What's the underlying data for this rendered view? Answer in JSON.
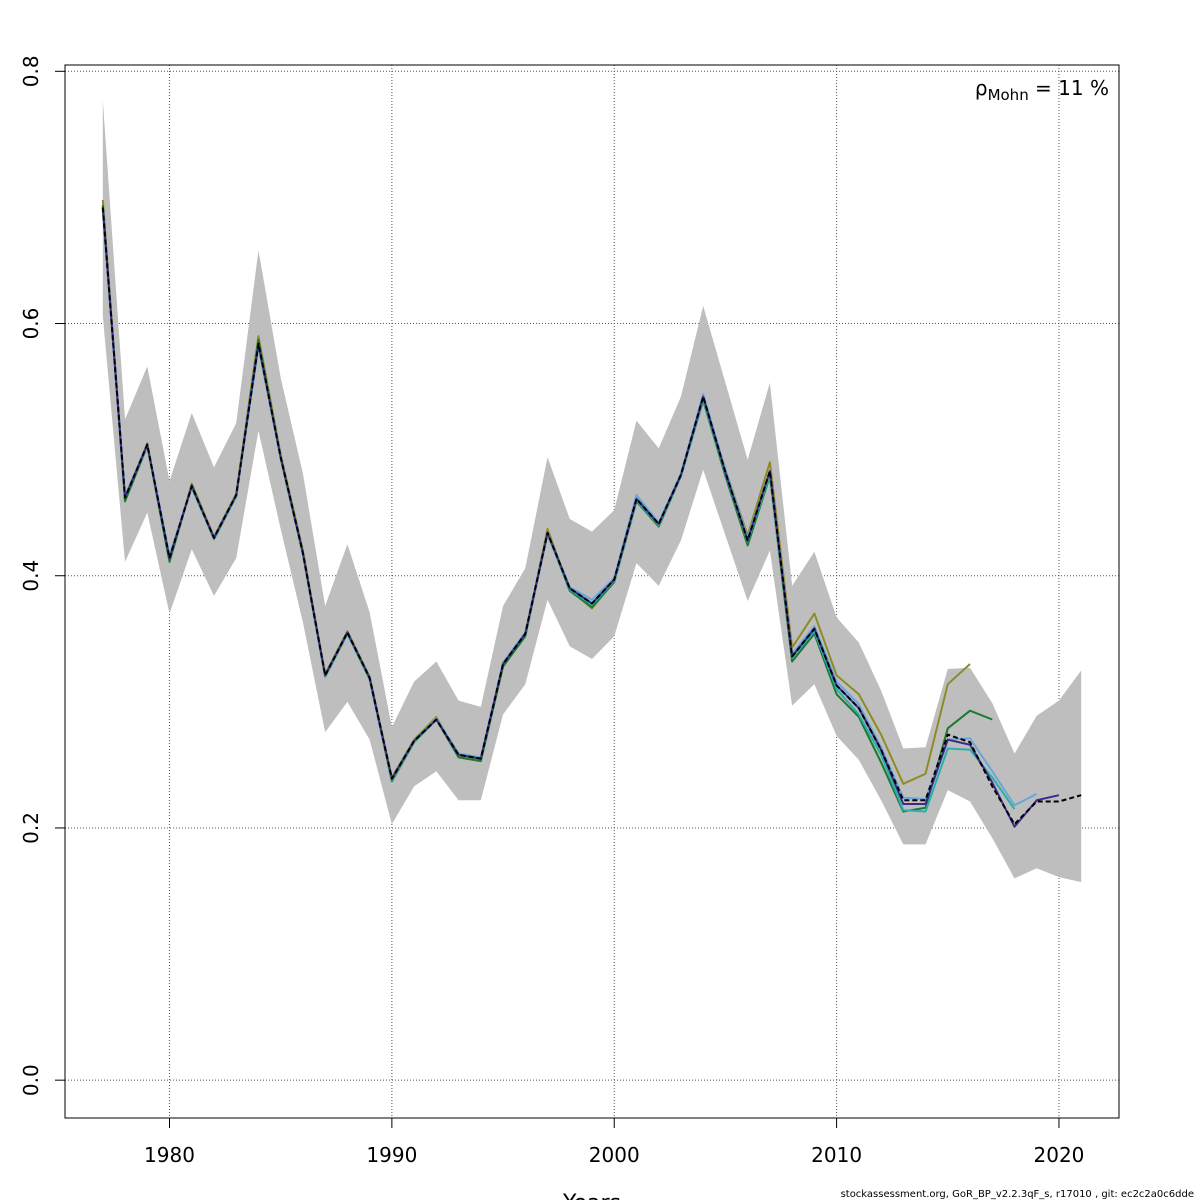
{
  "chart_data": {
    "type": "line",
    "xlabel": "Years",
    "ylabel": "",
    "xlim": [
      1975.3,
      2022.7
    ],
    "ylim": [
      -0.03,
      0.805
    ],
    "x_ticks": [
      1980,
      1990,
      2000,
      2010,
      2020
    ],
    "y_ticks": [
      0.0,
      0.2,
      0.4,
      0.6,
      0.8
    ],
    "x_tick_labels": [
      "1980",
      "1990",
      "2000",
      "2010",
      "2020"
    ],
    "y_tick_labels": [
      "0.0",
      "0.2",
      "0.4",
      "0.6",
      "0.8"
    ],
    "grid": true,
    "annotation": {
      "base": "ρ",
      "sub": "Mohn",
      "rest": " = 11 %"
    },
    "ci_band": {
      "color": "#bebebe",
      "x": [
        1977,
        1978,
        1979,
        1980,
        1981,
        1982,
        1983,
        1984,
        1985,
        1986,
        1987,
        1988,
        1989,
        1990,
        1991,
        1992,
        1993,
        1994,
        1995,
        1996,
        1997,
        1998,
        1999,
        2000,
        2001,
        2002,
        2003,
        2004,
        2005,
        2006,
        2007,
        2008,
        2009,
        2010,
        2011,
        2012,
        2013,
        2014,
        2015,
        2016,
        2017,
        2018,
        2019,
        2020,
        2021
      ],
      "upper": [
        0.777,
        0.524,
        0.566,
        0.475,
        0.529,
        0.486,
        0.521,
        0.658,
        0.557,
        0.481,
        0.376,
        0.425,
        0.371,
        0.28,
        0.316,
        0.332,
        0.301,
        0.296,
        0.376,
        0.406,
        0.494,
        0.445,
        0.435,
        0.452,
        0.523,
        0.501,
        0.542,
        0.614,
        0.553,
        0.492,
        0.553,
        0.392,
        0.419,
        0.367,
        0.347,
        0.309,
        0.263,
        0.264,
        0.326,
        0.327,
        0.299,
        0.259,
        0.289,
        0.301,
        0.325
      ],
      "lower": [
        0.606,
        0.411,
        0.45,
        0.37,
        0.421,
        0.384,
        0.414,
        0.515,
        0.437,
        0.363,
        0.276,
        0.3,
        0.27,
        0.203,
        0.233,
        0.245,
        0.222,
        0.222,
        0.29,
        0.314,
        0.381,
        0.344,
        0.334,
        0.352,
        0.41,
        0.392,
        0.428,
        0.484,
        0.432,
        0.38,
        0.42,
        0.297,
        0.314,
        0.273,
        0.254,
        0.222,
        0.187,
        0.187,
        0.23,
        0.221,
        0.192,
        0.16,
        0.168,
        0.161,
        0.157
      ]
    },
    "series": [
      {
        "color": "#000000",
        "dashed": true,
        "x": [
          1977,
          1978,
          1979,
          1980,
          1981,
          1982,
          1983,
          1984,
          1985,
          1986,
          1987,
          1988,
          1989,
          1990,
          1991,
          1992,
          1993,
          1994,
          1995,
          1996,
          1997,
          1998,
          1999,
          2000,
          2001,
          2002,
          2003,
          2004,
          2005,
          2006,
          2007,
          2008,
          2009,
          2010,
          2011,
          2012,
          2013,
          2014,
          2015,
          2016,
          2017,
          2018,
          2019,
          2020,
          2021
        ],
        "y": [
          0.692,
          0.462,
          0.504,
          0.414,
          0.471,
          0.43,
          0.464,
          0.584,
          0.494,
          0.418,
          0.321,
          0.355,
          0.319,
          0.239,
          0.269,
          0.286,
          0.258,
          0.255,
          0.33,
          0.354,
          0.434,
          0.39,
          0.378,
          0.397,
          0.461,
          0.441,
          0.48,
          0.542,
          0.482,
          0.428,
          0.483,
          0.336,
          0.358,
          0.313,
          0.295,
          0.262,
          0.222,
          0.222,
          0.274,
          0.268,
          0.233,
          0.203,
          0.221,
          0.221,
          0.226
        ]
      },
      {
        "color": "#3b2a8c",
        "dashed": false,
        "x": [
          1977,
          1978,
          1979,
          1980,
          1981,
          1982,
          1983,
          1984,
          1985,
          1986,
          1987,
          1988,
          1989,
          1990,
          1991,
          1992,
          1993,
          1994,
          1995,
          1996,
          1997,
          1998,
          1999,
          2000,
          2001,
          2002,
          2003,
          2004,
          2005,
          2006,
          2007,
          2008,
          2009,
          2010,
          2011,
          2012,
          2013,
          2014,
          2015,
          2016,
          2017,
          2018,
          2019,
          2020
        ],
        "y": [
          0.692,
          0.462,
          0.504,
          0.414,
          0.471,
          0.43,
          0.464,
          0.584,
          0.494,
          0.418,
          0.321,
          0.355,
          0.319,
          0.239,
          0.269,
          0.286,
          0.258,
          0.255,
          0.33,
          0.354,
          0.434,
          0.39,
          0.378,
          0.397,
          0.461,
          0.441,
          0.48,
          0.542,
          0.482,
          0.428,
          0.483,
          0.336,
          0.358,
          0.313,
          0.295,
          0.262,
          0.219,
          0.219,
          0.27,
          0.266,
          0.236,
          0.201,
          0.222,
          0.226
        ]
      },
      {
        "color": "#6aa6d8",
        "dashed": false,
        "x": [
          1977,
          1978,
          1979,
          1980,
          1981,
          1982,
          1983,
          1984,
          1985,
          1986,
          1987,
          1988,
          1989,
          1990,
          1991,
          1992,
          1993,
          1994,
          1995,
          1996,
          1997,
          1998,
          1999,
          2000,
          2001,
          2002,
          2003,
          2004,
          2005,
          2006,
          2007,
          2008,
          2009,
          2010,
          2011,
          2012,
          2013,
          2014,
          2015,
          2016,
          2017,
          2018,
          2019
        ],
        "y": [
          0.692,
          0.463,
          0.504,
          0.416,
          0.471,
          0.43,
          0.464,
          0.584,
          0.494,
          0.418,
          0.321,
          0.355,
          0.319,
          0.239,
          0.269,
          0.287,
          0.259,
          0.256,
          0.331,
          0.355,
          0.434,
          0.391,
          0.381,
          0.398,
          0.464,
          0.442,
          0.481,
          0.544,
          0.484,
          0.43,
          0.482,
          0.338,
          0.36,
          0.316,
          0.298,
          0.264,
          0.224,
          0.223,
          0.27,
          0.271,
          0.245,
          0.218,
          0.227
        ]
      },
      {
        "color": "#2ab0a8",
        "dashed": false,
        "x": [
          1977,
          1978,
          1979,
          1980,
          1981,
          1982,
          1983,
          1984,
          1985,
          1986,
          1987,
          1988,
          1989,
          1990,
          1991,
          1992,
          1993,
          1994,
          1995,
          1996,
          1997,
          1998,
          1999,
          2000,
          2001,
          2002,
          2003,
          2004,
          2005,
          2006,
          2007,
          2008,
          2009,
          2010,
          2011,
          2012,
          2013,
          2014,
          2015,
          2016,
          2017,
          2018
        ],
        "y": [
          0.69,
          0.463,
          0.503,
          0.415,
          0.47,
          0.429,
          0.463,
          0.582,
          0.493,
          0.417,
          0.32,
          0.354,
          0.318,
          0.238,
          0.268,
          0.286,
          0.258,
          0.255,
          0.33,
          0.354,
          0.433,
          0.389,
          0.377,
          0.396,
          0.46,
          0.44,
          0.479,
          0.54,
          0.481,
          0.427,
          0.48,
          0.335,
          0.356,
          0.31,
          0.29,
          0.258,
          0.214,
          0.213,
          0.263,
          0.262,
          0.24,
          0.215
        ]
      },
      {
        "color": "#1a7a30",
        "dashed": false,
        "x": [
          1977,
          1978,
          1979,
          1980,
          1981,
          1982,
          1983,
          1984,
          1985,
          1986,
          1987,
          1988,
          1989,
          1990,
          1991,
          1992,
          1993,
          1994,
          1995,
          1996,
          1997,
          1998,
          1999,
          2000,
          2001,
          2002,
          2003,
          2004,
          2005,
          2006,
          2007,
          2008,
          2009,
          2010,
          2011,
          2012,
          2013,
          2014,
          2015,
          2016,
          2017
        ],
        "y": [
          0.694,
          0.459,
          0.503,
          0.411,
          0.472,
          0.429,
          0.463,
          0.587,
          0.493,
          0.417,
          0.32,
          0.354,
          0.318,
          0.237,
          0.268,
          0.286,
          0.256,
          0.253,
          0.328,
          0.352,
          0.434,
          0.388,
          0.375,
          0.395,
          0.459,
          0.439,
          0.479,
          0.539,
          0.479,
          0.424,
          0.479,
          0.332,
          0.354,
          0.306,
          0.288,
          0.252,
          0.213,
          0.216,
          0.279,
          0.293,
          0.286
        ]
      },
      {
        "color": "#8c8c26",
        "dashed": false,
        "x": [
          1977,
          1978,
          1979,
          1980,
          1981,
          1982,
          1983,
          1984,
          1985,
          1986,
          1987,
          1988,
          1989,
          1990,
          1991,
          1992,
          1993,
          1994,
          1995,
          1996,
          1997,
          1998,
          1999,
          2000,
          2001,
          2002,
          2003,
          2004,
          2005,
          2006,
          2007,
          2008,
          2009,
          2010,
          2011,
          2012,
          2013,
          2014,
          2015,
          2016
        ],
        "y": [
          0.698,
          0.46,
          0.505,
          0.412,
          0.473,
          0.431,
          0.465,
          0.59,
          0.496,
          0.42,
          0.322,
          0.356,
          0.32,
          0.24,
          0.27,
          0.288,
          0.257,
          0.254,
          0.329,
          0.353,
          0.437,
          0.389,
          0.374,
          0.396,
          0.46,
          0.44,
          0.481,
          0.54,
          0.484,
          0.432,
          0.49,
          0.343,
          0.37,
          0.321,
          0.306,
          0.274,
          0.235,
          0.243,
          0.314,
          0.33
        ]
      }
    ],
    "footer_text": "stockassessment.org, GoR_BP_v2.2.3qF_s, r17010 , git: ec2c2a0c6dde"
  }
}
